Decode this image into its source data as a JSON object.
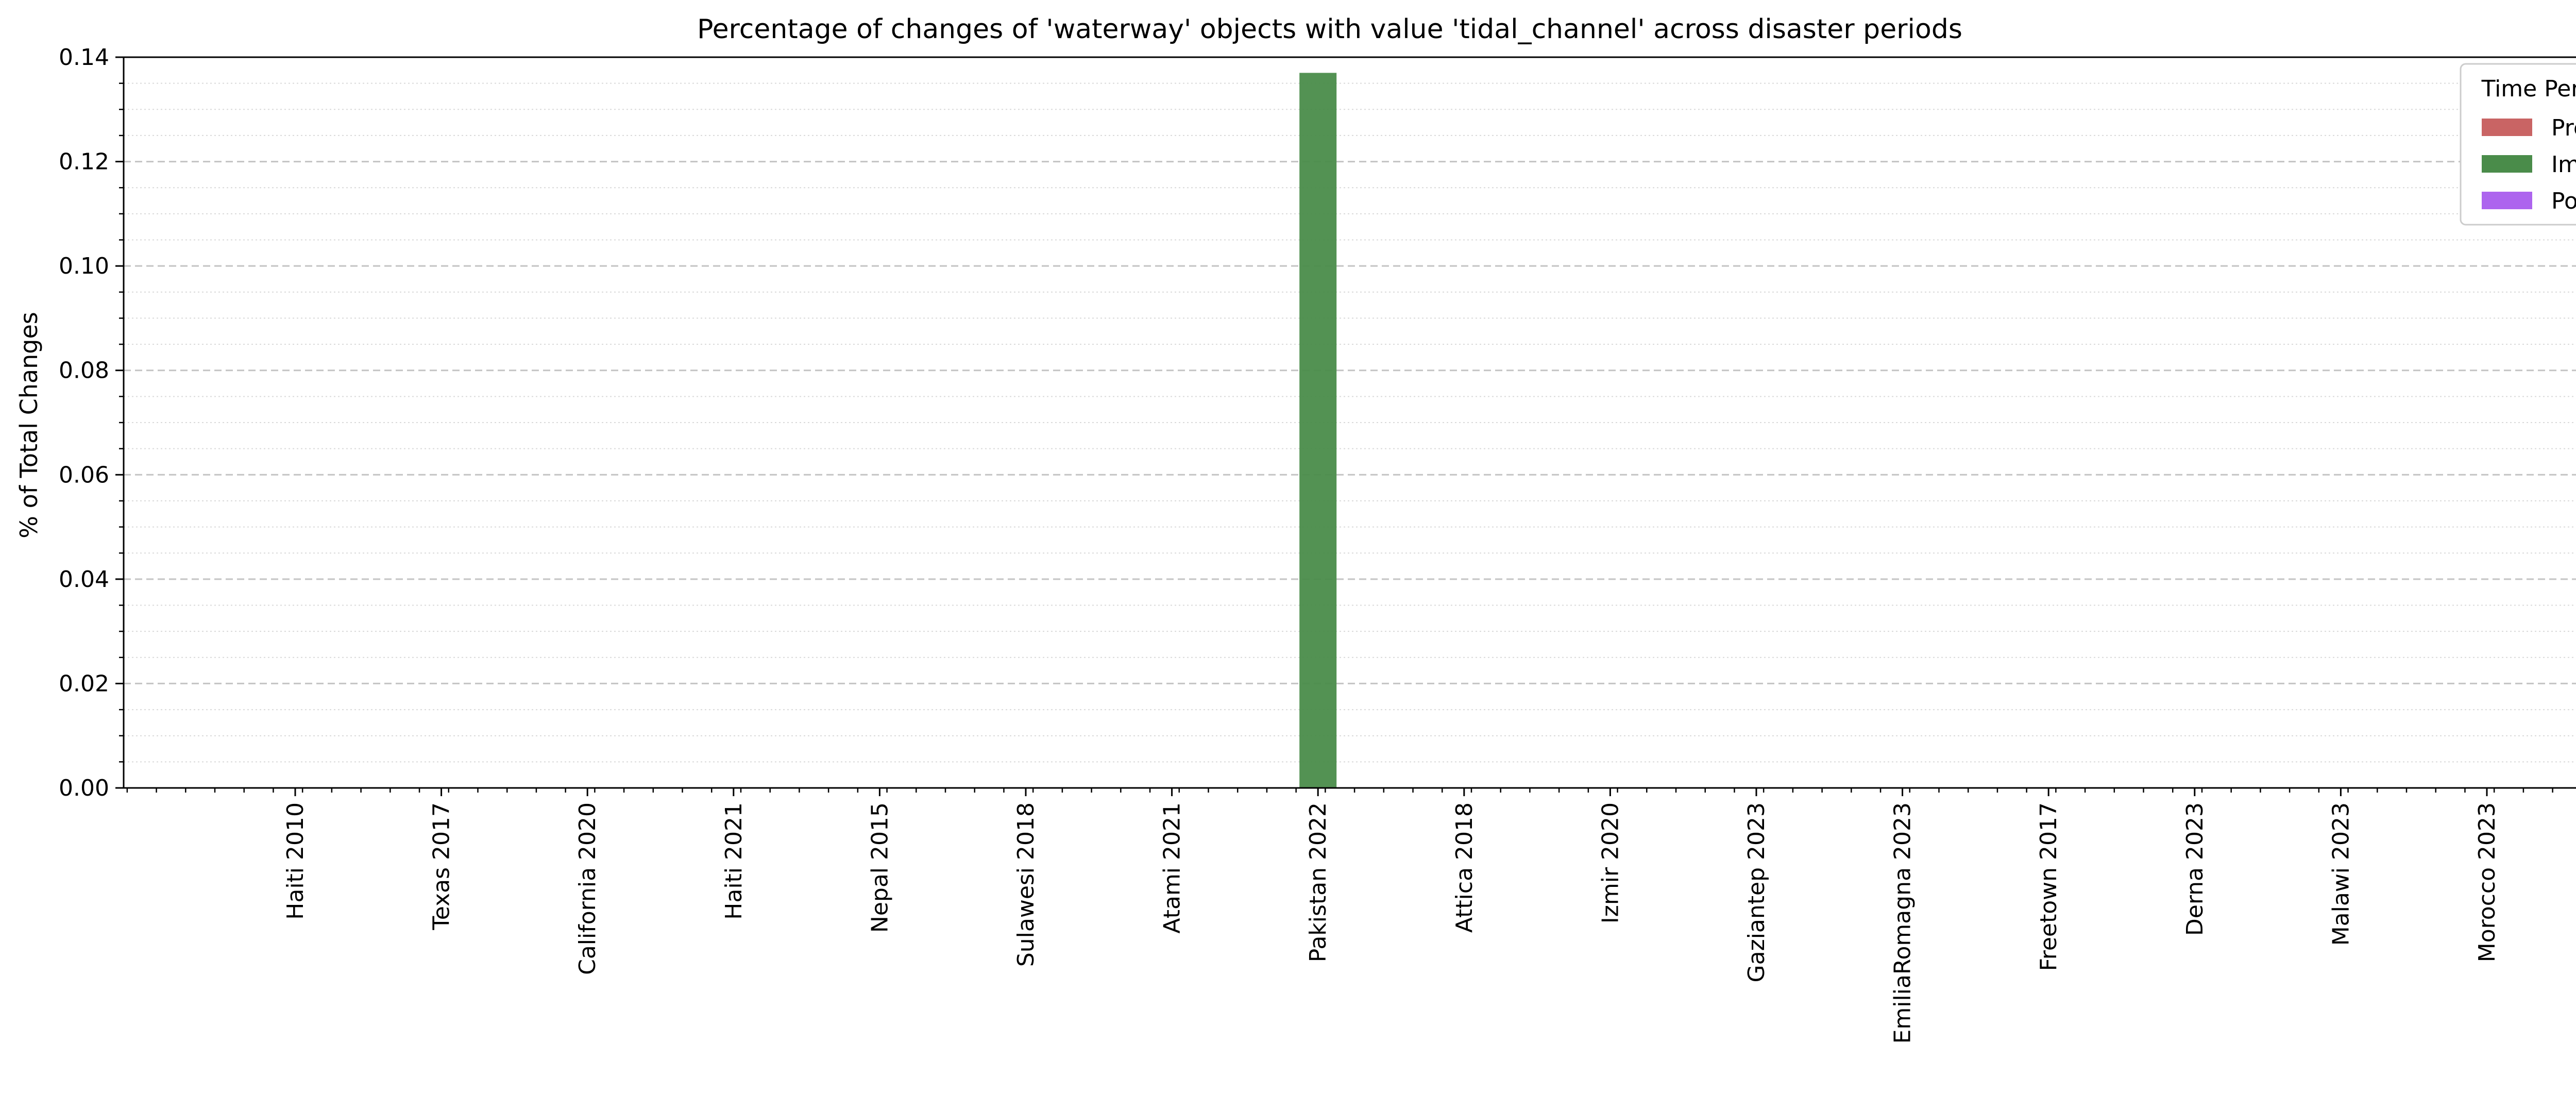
{
  "chart_data": {
    "type": "bar",
    "title": "Percentage of changes of 'waterway' objects with value 'tidal_channel' across disaster periods",
    "xlabel": "",
    "ylabel": "% of Total Changes",
    "ylim": [
      0,
      0.14
    ],
    "yticks": [
      0.0,
      0.02,
      0.04,
      0.06,
      0.08,
      0.1,
      0.12,
      0.14
    ],
    "ytick_labels": [
      "0.00",
      "0.02",
      "0.04",
      "0.06",
      "0.08",
      "0.10",
      "0.12",
      "0.14"
    ],
    "grid": true,
    "categories": [
      "Haiti 2010",
      "Texas 2017",
      "California 2020",
      "Haiti 2021",
      "Nepal 2015",
      "Sulawesi 2018",
      "Atami 2021",
      "Pakistan 2022",
      "Attica 2018",
      "Izmir 2020",
      "Gaziantep 2023",
      "EmiliaRomagna 2023",
      "Freetown 2017",
      "Derna 2023",
      "Malawi 2023",
      "Morocco 2023"
    ],
    "legend": {
      "title": "Time Period",
      "placement": "top-right"
    },
    "series": [
      {
        "name": "Pre",
        "color": "#c96464",
        "values": [
          0,
          0,
          0,
          0,
          0,
          0,
          0,
          0,
          0,
          0,
          0,
          0,
          0,
          0,
          0,
          0
        ]
      },
      {
        "name": "Imm",
        "color": "#4a8c4a",
        "values": [
          0,
          0,
          0,
          0,
          0,
          0,
          0,
          0.137,
          0,
          0,
          0,
          0,
          0,
          0,
          0,
          0
        ]
      },
      {
        "name": "Post",
        "color": "#ad64ee",
        "values": [
          0,
          0,
          0,
          0,
          0,
          0,
          0,
          0,
          0,
          0,
          0,
          0,
          0,
          0,
          0,
          0
        ]
      }
    ]
  }
}
